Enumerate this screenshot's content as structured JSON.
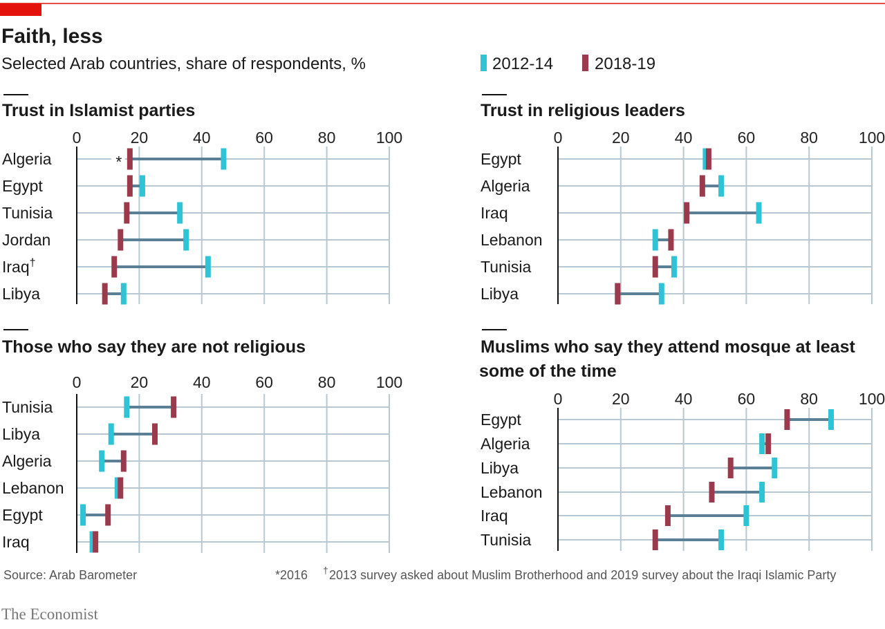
{
  "header": {
    "title": "Faith, less",
    "subtitle": "Selected Arab countries, share of respondents, %"
  },
  "legend": [
    {
      "label": "2012-14",
      "color": "#2ec4d6"
    },
    {
      "label": "2018-19",
      "color": "#9b3a4c"
    }
  ],
  "colors": {
    "accent": "#e3120b",
    "connector": "#5b7f95",
    "grid": "#b8c8d2"
  },
  "chart_data": [
    {
      "type": "dumbbell",
      "title": "Trust in Islamist parties",
      "xlim": [
        0,
        100
      ],
      "ticks": [
        "0",
        "20",
        "40",
        "60",
        "80",
        "100"
      ],
      "grid": true,
      "categories": [
        "Algeria",
        "Egypt",
        "Tunisia",
        "Jordan",
        "Iraq",
        "Libya"
      ],
      "category_marks": [
        "",
        "",
        "",
        "",
        "†",
        ""
      ],
      "value_marks": [
        "*",
        "",
        "",
        "",
        "",
        ""
      ],
      "series": [
        {
          "name": "2012-14",
          "values": [
            47,
            21,
            33,
            35,
            42,
            15
          ]
        },
        {
          "name": "2018-19",
          "values": [
            17,
            17,
            16,
            14,
            12,
            9
          ]
        }
      ]
    },
    {
      "type": "dumbbell",
      "title": "Trust in religious leaders",
      "xlim": [
        0,
        100
      ],
      "ticks": [
        "0",
        "20",
        "40",
        "60",
        "80",
        "100"
      ],
      "grid": true,
      "categories": [
        "Egypt",
        "Algeria",
        "Iraq",
        "Lebanon",
        "Tunisia",
        "Libya"
      ],
      "series": [
        {
          "name": "2012-14",
          "values": [
            47,
            52,
            64,
            31,
            37,
            33
          ]
        },
        {
          "name": "2018-19",
          "values": [
            48,
            46,
            41,
            36,
            31,
            19
          ]
        }
      ]
    },
    {
      "type": "dumbbell",
      "title": "Those who say they are not religious",
      "xlim": [
        0,
        100
      ],
      "ticks": [
        "0",
        "20",
        "40",
        "60",
        "80",
        "100"
      ],
      "grid": true,
      "categories": [
        "Tunisia",
        "Libya",
        "Algeria",
        "Lebanon",
        "Egypt",
        "Iraq"
      ],
      "series": [
        {
          "name": "2012-14",
          "values": [
            16,
            11,
            8,
            13,
            2,
            5
          ]
        },
        {
          "name": "2018-19",
          "values": [
            31,
            25,
            15,
            14,
            10,
            6
          ]
        }
      ]
    },
    {
      "type": "dumbbell",
      "title": "Muslims who say they attend mosque at least",
      "title_line2": "some of the time",
      "xlim": [
        0,
        100
      ],
      "ticks": [
        "0",
        "20",
        "40",
        "60",
        "80",
        "100"
      ],
      "grid": true,
      "categories": [
        "Egypt",
        "Algeria",
        "Libya",
        "Lebanon",
        "Iraq",
        "Tunisia"
      ],
      "series": [
        {
          "name": "2012-14",
          "values": [
            87,
            65,
            69,
            65,
            60,
            52
          ]
        },
        {
          "name": "2018-19",
          "values": [
            73,
            67,
            55,
            49,
            35,
            31
          ]
        }
      ]
    }
  ],
  "footer": {
    "source": "Source: Arab Barometer",
    "note1": "*2016",
    "note2_mark": "†",
    "note2": "2013 survey asked about Muslim Brotherhood and 2019 survey about the Iraqi Islamic Party",
    "brand": "The Economist"
  }
}
